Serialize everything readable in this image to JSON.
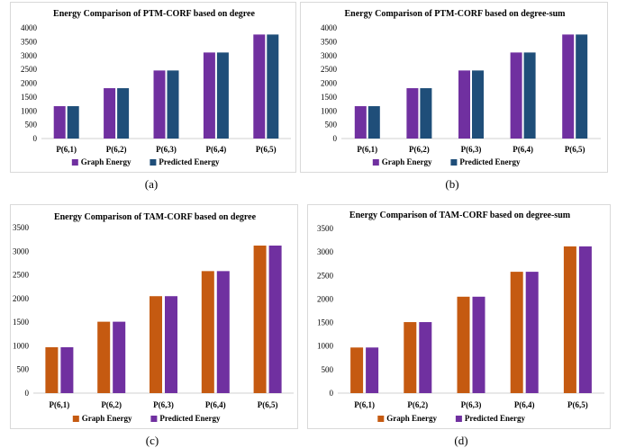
{
  "chart_data": [
    {
      "type": "bar",
      "title": "Energy Comparison of PTM-CORF based on degree",
      "categories": [
        "P(6,1)",
        "P(6,2)",
        "P(6,3)",
        "P(6,4)",
        "P(6,5)"
      ],
      "series": [
        {
          "name": "Graph Energy",
          "values": [
            1170,
            1820,
            2460,
            3110,
            3760
          ],
          "color": "#7030a0"
        },
        {
          "name": "Predicted Energy",
          "values": [
            1170,
            1820,
            2460,
            3110,
            3760
          ],
          "color": "#1f4e79"
        }
      ],
      "yticks": [
        "0",
        "500",
        "1000",
        "1500",
        "2000",
        "2500",
        "3000",
        "3500",
        "4000"
      ],
      "ylim": [
        0,
        4000
      ],
      "legend": "bottom",
      "caption": "(a)"
    },
    {
      "type": "bar",
      "title": "Energy Comparison of PTM-CORF based on degree-sum",
      "categories": [
        "P(6,1)",
        "P(6,2)",
        "P(6,3)",
        "P(6,4)",
        "P(6,5)"
      ],
      "series": [
        {
          "name": "Graph Energy",
          "values": [
            1170,
            1820,
            2460,
            3110,
            3760
          ],
          "color": "#7030a0"
        },
        {
          "name": "Predicted Energy",
          "values": [
            1170,
            1820,
            2460,
            3110,
            3760
          ],
          "color": "#1f4e79"
        }
      ],
      "yticks": [
        "0",
        "500",
        "1000",
        "1500",
        "2000",
        "2500",
        "3000",
        "3500",
        "4000"
      ],
      "ylim": [
        0,
        4000
      ],
      "legend": "bottom",
      "caption": "(b)"
    },
    {
      "type": "bar",
      "title": "Energy Comparison of TAM-CORF based on degree",
      "categories": [
        "P(6,1)",
        "P(6,2)",
        "P(6,3)",
        "P(6,4)",
        "P(6,5)"
      ],
      "series": [
        {
          "name": "Graph Energy",
          "values": [
            970,
            1510,
            2050,
            2580,
            3120
          ],
          "color": "#c55a11"
        },
        {
          "name": "Predicted Energy",
          "values": [
            970,
            1510,
            2050,
            2580,
            3120
          ],
          "color": "#7030a0"
        }
      ],
      "yticks": [
        "0",
        "500",
        "1000",
        "1500",
        "2000",
        "2500",
        "3000",
        "3500"
      ],
      "ylim": [
        0,
        3500
      ],
      "legend": "bottom",
      "caption": "(c)"
    },
    {
      "type": "bar",
      "title": "Energy Comparison of TAM-CORF based on degree-sum",
      "categories": [
        "P(6,1)",
        "P(6,2)",
        "P(6,3)",
        "P(6,4)",
        "P(6,5)"
      ],
      "series": [
        {
          "name": "Graph Energy",
          "values": [
            970,
            1510,
            2050,
            2580,
            3120
          ],
          "color": "#c55a11"
        },
        {
          "name": "Predicted Energy",
          "values": [
            970,
            1510,
            2050,
            2580,
            3120
          ],
          "color": "#7030a0"
        }
      ],
      "yticks": [
        "0",
        "500",
        "1000",
        "1500",
        "2000",
        "2500",
        "3000",
        "3500"
      ],
      "ylim": [
        0,
        3500
      ],
      "legend": "bottom",
      "caption": "(d)"
    }
  ]
}
